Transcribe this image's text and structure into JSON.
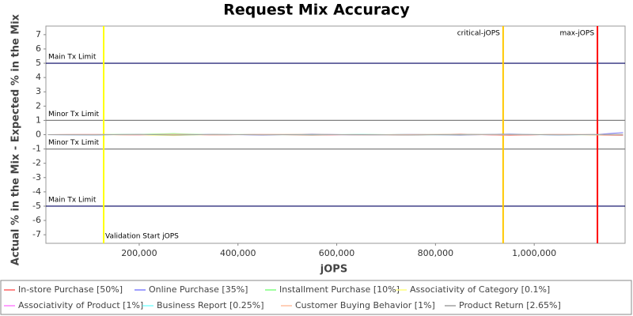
{
  "chart_data": {
    "type": "line",
    "title": "Request Mix Accuracy",
    "x_label": "jOPS",
    "y_label": "Actual % in the Mix - Expected % in the Mix",
    "x": [
      15000,
      110000,
      200000,
      270000,
      350000,
      450000,
      550000,
      650000,
      750000,
      850000,
      950000,
      1050000,
      1130000,
      1180000
    ],
    "series": [
      {
        "name": "In-store Purchase [50%]",
        "color": "#ff6060",
        "values": [
          0.0,
          0.02,
          -0.03,
          0.05,
          -0.02,
          0.03,
          -0.04,
          0.02,
          -0.03,
          0.04,
          -0.05,
          0.03,
          -0.02,
          -0.05
        ]
      },
      {
        "name": "Online Purchase [35%]",
        "color": "#8080ff",
        "values": [
          0.0,
          -0.02,
          0.03,
          -0.05,
          0.03,
          -0.03,
          0.04,
          -0.03,
          0.02,
          -0.04,
          0.05,
          -0.03,
          0.02,
          0.15
        ]
      },
      {
        "name": "Installment Purchase [10%]",
        "color": "#80ff80",
        "values": [
          0.0,
          0.01,
          0.02,
          0.08,
          -0.01,
          0.02,
          0.01,
          -0.02,
          0.02,
          0.01,
          -0.01,
          0.02,
          0.0,
          0.01
        ]
      },
      {
        "name": "Associativity of Category [0.1%]",
        "color": "#ffff80",
        "values": [
          0.0,
          0.0,
          -0.02,
          -0.06,
          0.01,
          0.0,
          -0.01,
          0.01,
          0.0,
          -0.01,
          0.01,
          0.0,
          -0.01,
          0.0
        ]
      },
      {
        "name": "Associativity of Product [1%]",
        "color": "#ff80ff",
        "values": [
          0.0,
          0.01,
          -0.01,
          0.02,
          -0.01,
          0.01,
          0.0,
          -0.01,
          0.01,
          0.0,
          -0.01,
          0.01,
          0.0,
          0.01
        ]
      },
      {
        "name": "Business Report [0.25%]",
        "color": "#80ffff",
        "values": [
          0.0,
          -0.01,
          0.01,
          -0.02,
          0.01,
          0.0,
          -0.01,
          0.02,
          -0.01,
          0.0,
          0.01,
          -0.01,
          0.0,
          -0.01
        ]
      },
      {
        "name": "Customer Buying Behavior [1%]",
        "color": "#ffc0a0",
        "values": [
          0.0,
          0.01,
          0.0,
          0.03,
          -0.02,
          0.01,
          0.02,
          -0.01,
          0.0,
          0.02,
          -0.02,
          0.01,
          0.01,
          0.0
        ]
      },
      {
        "name": "Product Return [2.65%]",
        "color": "#a0a0a0",
        "values": [
          0.0,
          -0.01,
          0.02,
          -0.03,
          0.02,
          -0.01,
          0.01,
          0.0,
          -0.02,
          0.01,
          0.02,
          -0.01,
          0.01,
          0.03
        ]
      }
    ],
    "xlim": [
      11000,
      1184000
    ],
    "xticks": [
      {
        "value": 200000,
        "label": "200,000"
      },
      {
        "value": 400000,
        "label": "400,000"
      },
      {
        "value": 600000,
        "label": "600,000"
      },
      {
        "value": 800000,
        "label": "800,000"
      },
      {
        "value": 1000000,
        "label": "1,000,000"
      }
    ],
    "ylim": [
      -7.6,
      7.6
    ],
    "yticks": [
      -7,
      -6,
      -5,
      -4,
      -3,
      -2,
      -1,
      0,
      1,
      2,
      3,
      4,
      5,
      6,
      7
    ],
    "annotations": {
      "hlines": [
        {
          "value": 5,
          "label": "Main Tx Limit",
          "color": "#000060"
        },
        {
          "value": 1,
          "label": "Minor Tx Limit",
          "color": "#808080"
        },
        {
          "value": -1,
          "label": "Minor Tx Limit",
          "color": "#808080"
        },
        {
          "value": -5,
          "label": "Main Tx Limit",
          "color": "#000060"
        }
      ],
      "vlines": [
        {
          "value": 128000,
          "label": "Validation Start jOPS",
          "color": "#ffff00",
          "label_side": "bottom-right"
        },
        {
          "value": 937000,
          "label": "critical-jOPS",
          "color": "#ffc800",
          "label_side": "top-left"
        },
        {
          "value": 1128000,
          "label": "max-jOPS",
          "color": "#ff0000",
          "label_side": "top-left"
        }
      ]
    },
    "legend": "bottom"
  }
}
